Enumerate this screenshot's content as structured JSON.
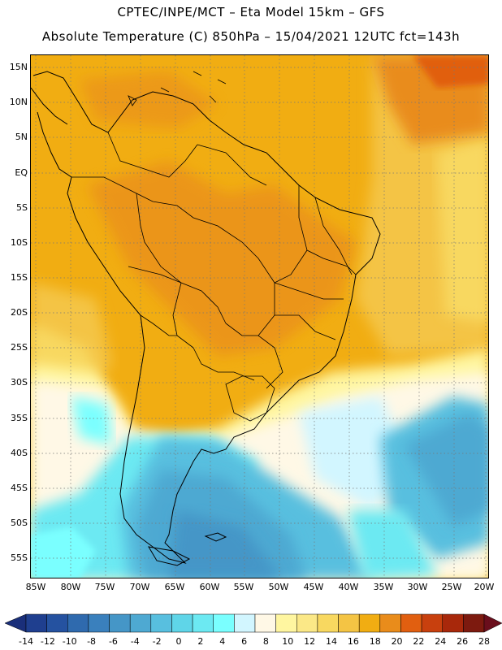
{
  "header": {
    "line1": "CPTEC/INPE/MCT –  Eta Model 15km – GFS",
    "line2": "Absolute Temperature (C) 850hPa – 15/04/2021 12UTC fct=143h"
  },
  "axes": {
    "lat_labels": [
      "15N",
      "10N",
      "5N",
      "EQ",
      "5S",
      "10S",
      "15S",
      "20S",
      "25S",
      "30S",
      "35S",
      "40S",
      "45S",
      "50S",
      "55S"
    ],
    "lon_labels": [
      "85W",
      "80W",
      "75W",
      "70W",
      "65W",
      "60W",
      "55W",
      "50W",
      "45W",
      "40W",
      "35W",
      "30W",
      "25W",
      "20W"
    ]
  },
  "colorbar": {
    "labels": [
      "-14",
      "-12",
      "-10",
      "-8",
      "-6",
      "-4",
      "-2",
      "0",
      "2",
      "4",
      "6",
      "8",
      "10",
      "12",
      "14",
      "16",
      "18",
      "20",
      "22",
      "24",
      "26",
      "28"
    ],
    "colors": [
      "#1f3f8f",
      "#2552a0",
      "#2f6aae",
      "#3a80bd",
      "#4596c7",
      "#4ea9d2",
      "#58bfdf",
      "#5fd5e8",
      "#6ce9f2",
      "#7affff",
      "#d2f6ff",
      "#fff8e6",
      "#fff6a0",
      "#fbe887",
      "#f8d860",
      "#f4c444",
      "#f1ad12",
      "#e98c1b",
      "#e15f10",
      "#c8400e",
      "#a8280b",
      "#7d1a0f"
    ],
    "left_end": "#1a2f7a",
    "right_end": "#6a0e1c"
  }
}
